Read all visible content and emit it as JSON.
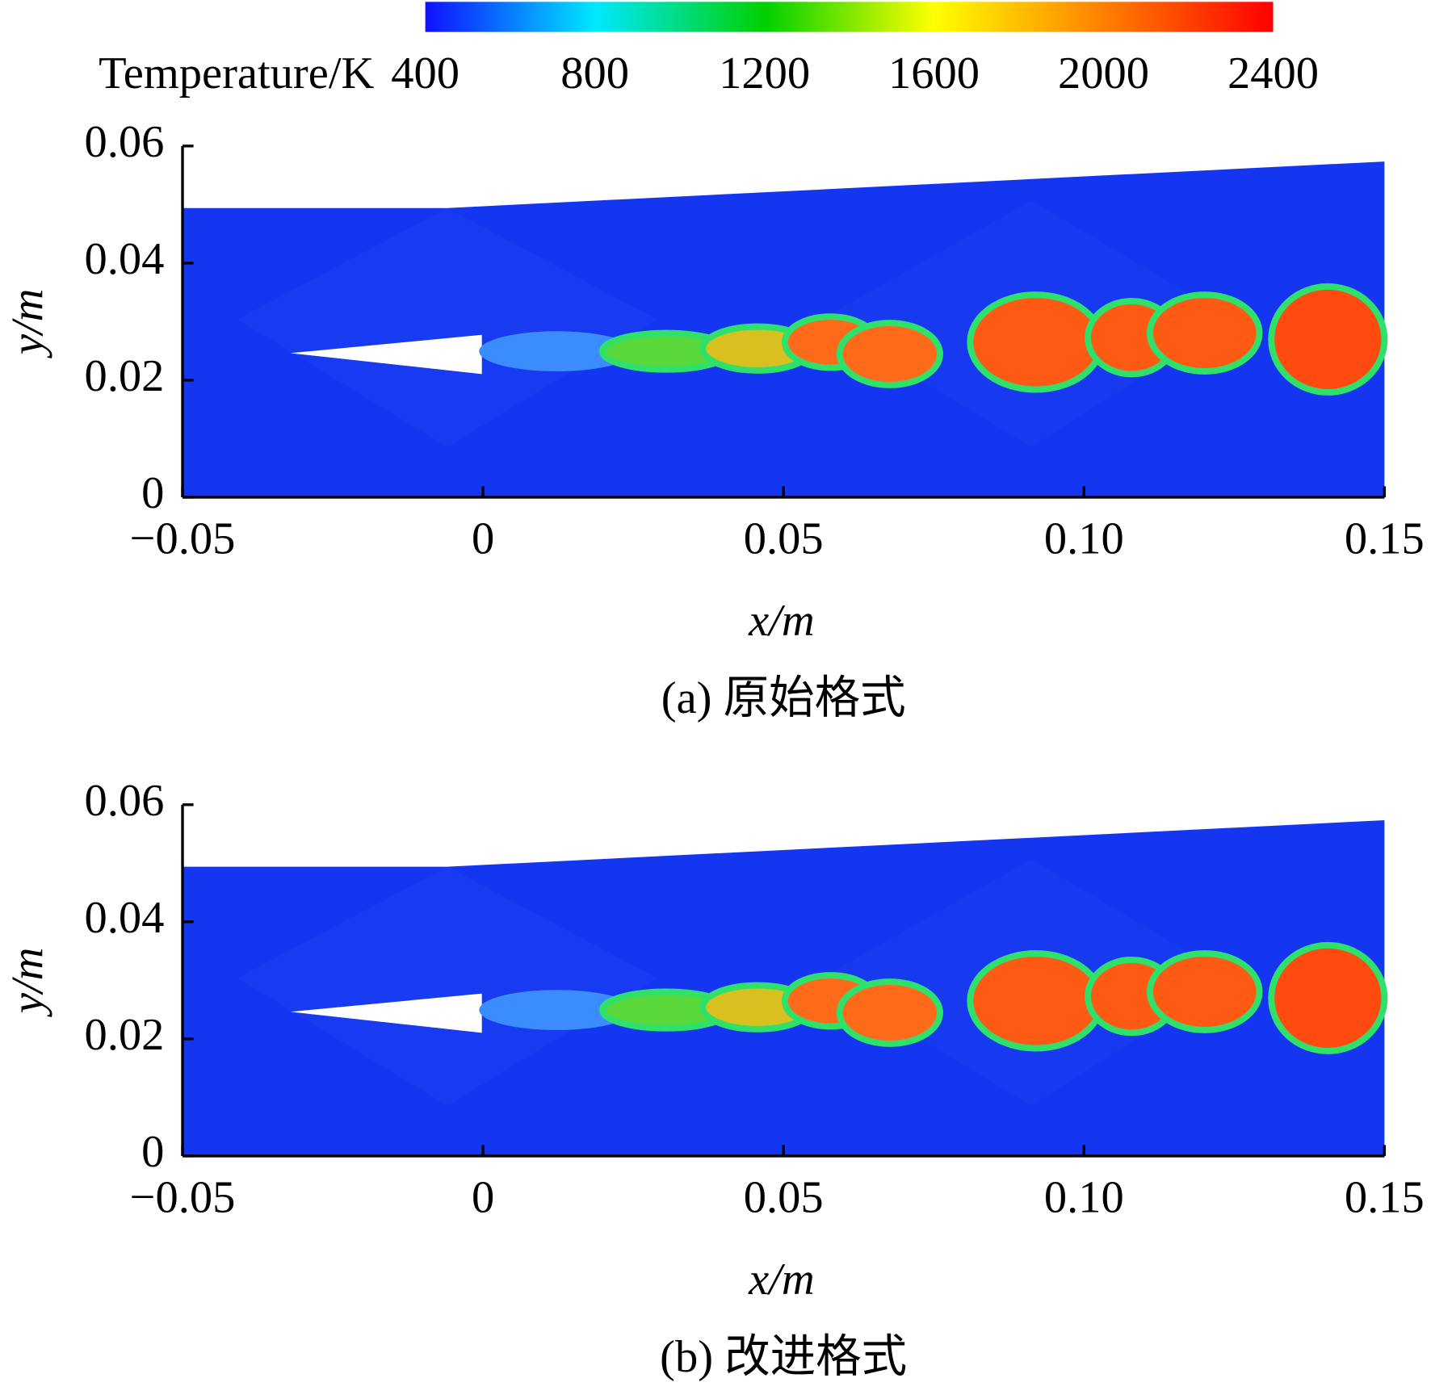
{
  "chart_data": [
    {
      "type": "contour",
      "title": "(a) 原始格式",
      "xlabel": "x/m",
      "ylabel": "y/m",
      "xlim": [
        -0.05,
        0.15
      ],
      "ylim": [
        0,
        0.06
      ],
      "xticks": [
        {
          "value": -0.05,
          "label": "−0.05"
        },
        0,
        0.05,
        {
          "value": 0.1,
          "label": "0.10"
        },
        0.15
      ],
      "yticks": [
        0,
        0.02,
        0.04,
        0.06
      ],
      "colorbar": {
        "label": "Temperature/K",
        "lim": [
          400,
          2400
        ],
        "ticks": [
          400,
          800,
          1200,
          1600,
          2000,
          2400
        ],
        "colors": [
          "#1010ff",
          "#00e8ff",
          "#00d000",
          "#ffff00",
          "#ff8000",
          "#ff0000"
        ]
      }
    },
    {
      "type": "contour",
      "title": "(b) 改进格式",
      "xlabel": "x/m",
      "ylabel": "y/m",
      "xlim": [
        -0.05,
        0.15
      ],
      "ylim": [
        0,
        0.06
      ],
      "xticks": [
        {
          "value": -0.05,
          "label": "−0.05"
        },
        0,
        0.05,
        {
          "value": 0.1,
          "label": "0.10"
        },
        0.15
      ],
      "yticks": [
        0,
        0.02,
        0.04,
        0.06
      ]
    }
  ]
}
